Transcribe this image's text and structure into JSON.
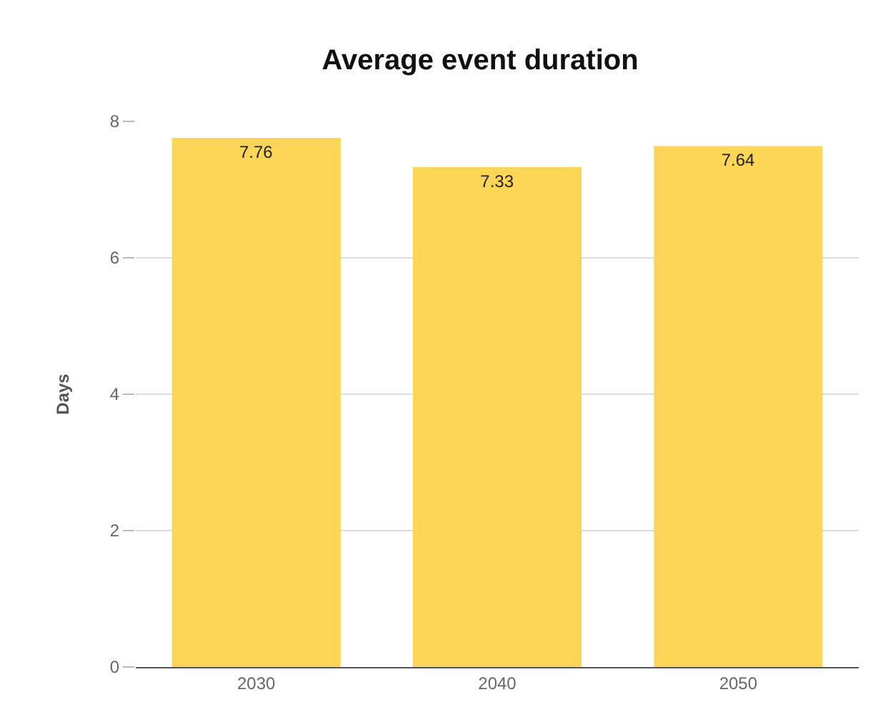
{
  "chart_data": {
    "type": "bar",
    "title": "Average event duration",
    "ylabel": "Days",
    "categories": [
      "2030",
      "2040",
      "2050"
    ],
    "series": [
      {
        "color": "#fdd657",
        "values": [
          7.76,
          7.33,
          7.64
        ]
      }
    ],
    "ylim": [
      0,
      8
    ],
    "yticks": [
      0,
      2,
      4,
      6,
      8
    ],
    "grid": "y",
    "data_labels": true
  }
}
